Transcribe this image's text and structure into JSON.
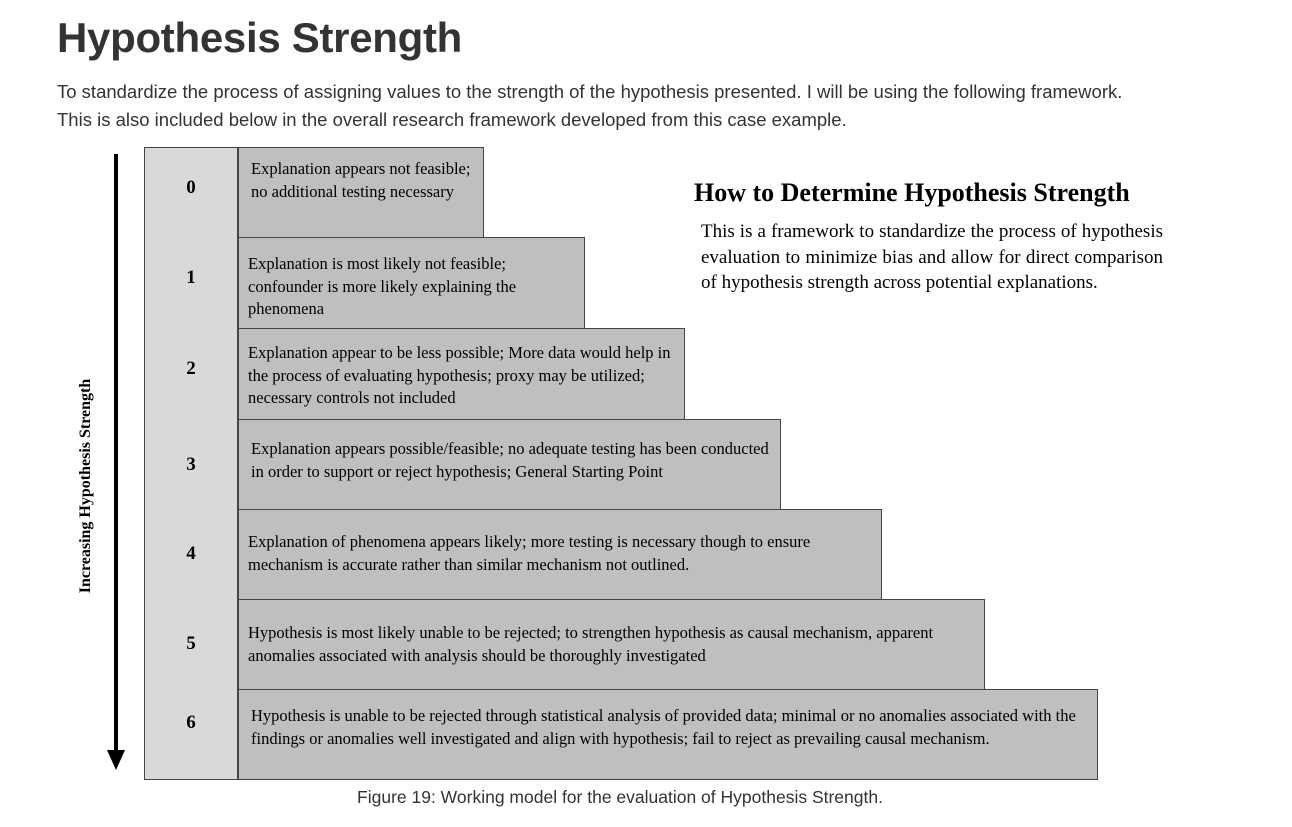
{
  "title": "Hypothesis Strength",
  "intro": "To standardize the process of assigning values to the strength of the hypothesis presented. I will be using the following framework. This is also included below in the overall research framework developed from this case example.",
  "diagram": {
    "axis_label": "Increasing Hypothesis Strength",
    "side_heading": "How to Determine Hypothesis Strength",
    "side_body": "This is a framework to standardize the process of hypothesis evaluation to minimize bias and allow for direct comparison of hypothesis strength across potential explanations.",
    "levels": [
      {
        "level": "0",
        "text": "Explanation appears not feasible; no additional testing necessary"
      },
      {
        "level": "1",
        "text": "Explanation is most likely not feasible; confounder is more likely explaining the phenomena"
      },
      {
        "level": "2",
        "text": "Explanation appear to be less possible; More data would help in the process of evaluating hypothesis; proxy may be utilized; necessary controls not included"
      },
      {
        "level": "3",
        "text": "Explanation appears possible/feasible; no adequate testing has been conducted in order to support or reject hypothesis; General Starting Point"
      },
      {
        "level": "4",
        "text": "Explanation of phenomena appears likely; more testing is necessary though to ensure mechanism is accurate rather than similar mechanism not outlined."
      },
      {
        "level": "5",
        "text": "Hypothesis is most likely unable to be rejected; to strengthen hypothesis as causal mechanism, apparent anomalies associated with analysis should be thoroughly investigated"
      },
      {
        "level": "6",
        "text": "Hypothesis is unable to be rejected through statistical analysis of provided data; minimal or no anomalies associated with the findings or anomalies well investigated and align with hypothesis; fail to reject as prevailing causal mechanism."
      }
    ]
  },
  "caption": "Figure 19: Working model for the evaluation of Hypothesis Strength.",
  "colors": {
    "level_column": "#d9d9d9",
    "step_fill": "#bfbfbf",
    "border": "#444444"
  }
}
